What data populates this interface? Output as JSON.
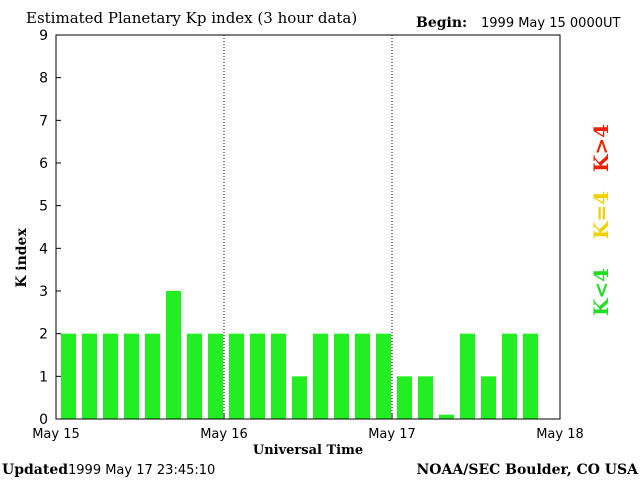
{
  "header": {
    "title": "Estimated Planetary Kp index (3 hour data)",
    "begin_label": "Begin:",
    "begin_value": "1999 May 15 0000UT"
  },
  "footer": {
    "updated_label": "Updated",
    "updated_value": "1999 May 17 23:45:10",
    "source": "NOAA/SEC Boulder, CO USA"
  },
  "chart_data": {
    "type": "bar",
    "title": "Estimated Planetary Kp index (3 hour data)",
    "xlabel": "Universal Time",
    "ylabel": "K index",
    "ylim": [
      0,
      9
    ],
    "yticks": [
      0,
      1,
      2,
      3,
      4,
      5,
      6,
      7,
      8,
      9
    ],
    "xlim": [
      "1999 May 15 00:00",
      "1999 May 18 00:00"
    ],
    "x_ticks": [
      "May 15",
      "May 16",
      "May 17",
      "May 18"
    ],
    "day_separators": [
      "May 16",
      "May 17"
    ],
    "bar_interval_hours": 3,
    "values": [
      2,
      2,
      2,
      2,
      2,
      3,
      2,
      2,
      2,
      2,
      2,
      1,
      2,
      2,
      2,
      2,
      1,
      1,
      0.1,
      2,
      1,
      2,
      2
    ],
    "bar_color": "#22ee22",
    "legend": [
      {
        "label": "K<4",
        "color": "#22dd22"
      },
      {
        "label": "K=4",
        "color": "#f2d000"
      },
      {
        "label": "K>4",
        "color": "#ee2200"
      }
    ]
  }
}
